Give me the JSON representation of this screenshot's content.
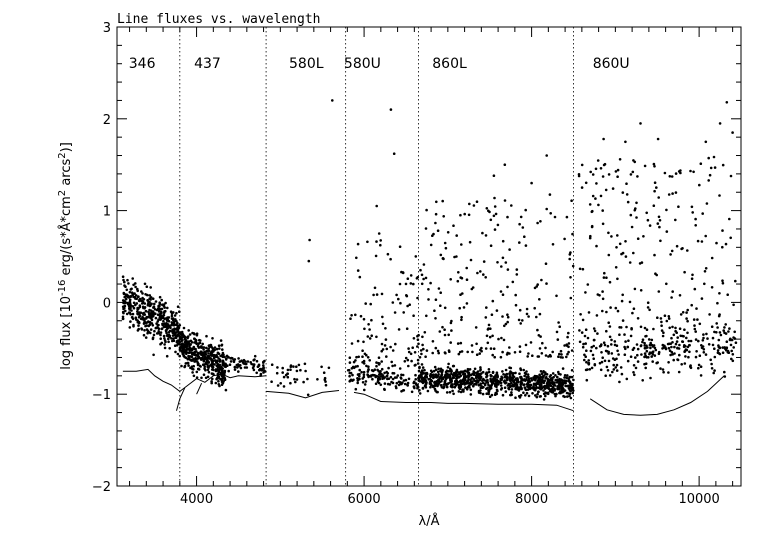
{
  "chart_data": {
    "type": "scatter",
    "title": "Line fluxes vs. wavelength",
    "xlabel": "λ/Å",
    "ylabel_parts": {
      "prefix": "log  flux  [10",
      "exp1": "-16",
      "mid": " erg/(s*Å*cm",
      "exp2": "2",
      "mid2": " arcs",
      "exp3": "2",
      "suffix": ")]"
    },
    "xlim": [
      3050,
      10500
    ],
    "ylim": [
      -2,
      3
    ],
    "x_ticks": [
      4000,
      6000,
      8000,
      10000
    ],
    "x_tick_labels": [
      "4000",
      "6000",
      "8000",
      "10000"
    ],
    "y_ticks": [
      -2,
      -1,
      0,
      1,
      2,
      3
    ],
    "y_tick_labels": [
      "−2",
      "−1",
      "0",
      "1",
      "2",
      "3"
    ],
    "setting_boundaries": [
      3800,
      4830,
      5780,
      6650,
      8500
    ],
    "setting_labels": [
      {
        "text": "346",
        "x": 3350
      },
      {
        "text": "437",
        "x": 4130
      },
      {
        "text": "580L",
        "x": 5310
      },
      {
        "text": "580U",
        "x": 5980
      },
      {
        "text": "860L",
        "x": 7020
      },
      {
        "text": "860U",
        "x": 8950
      }
    ],
    "limit_curves": [
      [
        [
          3120,
          -0.75
        ],
        [
          3280,
          -0.75
        ],
        [
          3420,
          -0.73
        ],
        [
          3500,
          -0.8
        ],
        [
          3600,
          -0.86
        ],
        [
          3700,
          -0.9
        ],
        [
          3800,
          -0.97
        ],
        [
          3900,
          -0.9
        ],
        [
          4000,
          -0.83
        ],
        [
          4100,
          -0.87
        ],
        [
          4200,
          -0.8
        ],
        [
          4300,
          -0.78
        ],
        [
          4400,
          -0.82
        ],
        [
          4500,
          -0.8
        ],
        [
          4700,
          -0.81
        ],
        [
          4830,
          -0.8
        ]
      ],
      [
        [
          3760,
          -1.18
        ],
        [
          3800,
          -1.05
        ],
        [
          3860,
          -0.93
        ]
      ],
      [
        [
          4000,
          -1.0
        ],
        [
          4060,
          -0.88
        ]
      ],
      [
        [
          4830,
          -0.97
        ],
        [
          5100,
          -0.99
        ],
        [
          5300,
          -1.04
        ],
        [
          5500,
          -0.98
        ],
        [
          5700,
          -0.96
        ]
      ],
      [
        [
          5880,
          -0.98
        ],
        [
          6000,
          -1.0
        ],
        [
          6200,
          -1.08
        ],
        [
          6500,
          -1.09
        ],
        [
          6800,
          -1.09
        ],
        [
          7000,
          -1.1
        ],
        [
          7200,
          -1.1
        ],
        [
          7600,
          -1.11
        ],
        [
          8000,
          -1.11
        ],
        [
          8300,
          -1.12
        ],
        [
          8500,
          -1.18
        ]
      ],
      [
        [
          8700,
          -1.05
        ],
        [
          8900,
          -1.17
        ],
        [
          9100,
          -1.22
        ],
        [
          9300,
          -1.23
        ],
        [
          9500,
          -1.22
        ],
        [
          9700,
          -1.17
        ],
        [
          9900,
          -1.09
        ],
        [
          10100,
          -0.97
        ],
        [
          10300,
          -0.8
        ]
      ]
    ],
    "outliers": [
      [
        5620,
        2.2
      ],
      [
        6320,
        2.1
      ],
      [
        6360,
        1.62
      ],
      [
        6150,
        1.05
      ],
      [
        6180,
        0.75
      ],
      [
        5350,
        0.68
      ],
      [
        5340,
        0.45
      ],
      [
        7150,
        0.95
      ],
      [
        7680,
        1.5
      ],
      [
        8180,
        1.6
      ],
      [
        9300,
        1.95
      ],
      [
        9120,
        1.75
      ],
      [
        10330,
        2.18
      ],
      [
        10400,
        1.85
      ],
      [
        10250,
        1.95
      ],
      [
        8860,
        1.78
      ],
      [
        9510,
        1.78
      ],
      [
        10080,
        1.75
      ],
      [
        7550,
        1.38
      ],
      [
        8000,
        1.3
      ]
    ],
    "dense_regions": [
      {
        "x": [
          3120,
          3800
        ],
        "center": [
          0.05,
          -0.35
        ],
        "spread": 0.28,
        "n": 420
      },
      {
        "x": [
          3800,
          4350
        ],
        "center": [
          -0.45,
          -0.72
        ],
        "spread": 0.22,
        "n": 420
      },
      {
        "x": [
          4350,
          4830
        ],
        "center": [
          -0.62,
          -0.72
        ],
        "spread": 0.1,
        "n": 70
      },
      {
        "x": [
          4830,
          5650
        ],
        "center": [
          -0.75,
          -0.8
        ],
        "spread": 0.15,
        "n": 40
      },
      {
        "x": [
          5800,
          6650
        ],
        "center": [
          -0.78,
          -0.88
        ],
        "spread": 0.12,
        "n": 140
      },
      {
        "x": [
          6650,
          8500
        ],
        "center": [
          -0.82,
          -0.9
        ],
        "spread": 0.14,
        "n": 900
      },
      {
        "x": [
          8600,
          10450
        ],
        "center": [
          -0.6,
          -0.5
        ],
        "spread": 0.28,
        "n": 230
      }
    ],
    "scattered_regions": [
      {
        "x": [
          5800,
          6650
        ],
        "y": [
          -0.7,
          0.7
        ],
        "n": 120
      },
      {
        "x": [
          6650,
          8500
        ],
        "y": [
          -0.6,
          1.2
        ],
        "n": 260
      },
      {
        "x": [
          8550,
          10450
        ],
        "y": [
          -0.5,
          1.6
        ],
        "n": 300
      }
    ],
    "marker_color": "#000000"
  }
}
